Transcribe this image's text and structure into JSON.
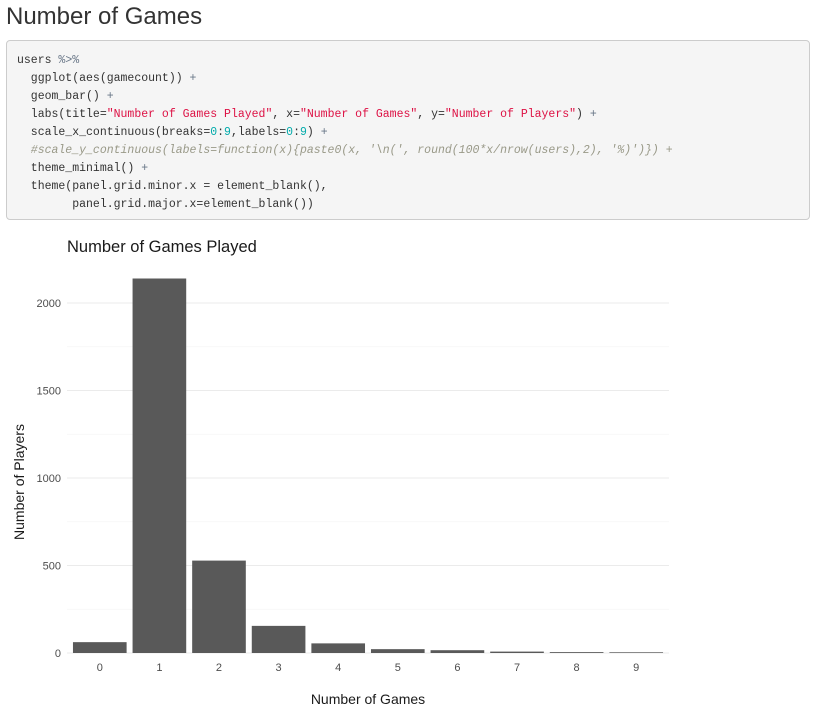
{
  "page": {
    "heading": "Number of Games"
  },
  "code": {
    "lines": [
      [
        {
          "t": "users ",
          "c": "fn"
        },
        {
          "t": "%>%",
          "c": "op"
        }
      ],
      [
        {
          "t": "  ggplot(aes(gamecount)) ",
          "c": "fn"
        },
        {
          "t": "+",
          "c": "op"
        }
      ],
      [
        {
          "t": "  geom_bar() ",
          "c": "fn"
        },
        {
          "t": "+",
          "c": "op"
        }
      ],
      [
        {
          "t": "  labs(title=",
          "c": "fn"
        },
        {
          "t": "\"Number of Games Played\"",
          "c": "str"
        },
        {
          "t": ", x=",
          "c": "fn"
        },
        {
          "t": "\"Number of Games\"",
          "c": "str"
        },
        {
          "t": ", y=",
          "c": "fn"
        },
        {
          "t": "\"Number of Players\"",
          "c": "str"
        },
        {
          "t": ") ",
          "c": "fn"
        },
        {
          "t": "+",
          "c": "op"
        }
      ],
      [
        {
          "t": "  scale_x_continuous(breaks=",
          "c": "fn"
        },
        {
          "t": "0",
          "c": "num"
        },
        {
          "t": ":",
          "c": "fn"
        },
        {
          "t": "9",
          "c": "num"
        },
        {
          "t": ",labels=",
          "c": "fn"
        },
        {
          "t": "0",
          "c": "num"
        },
        {
          "t": ":",
          "c": "fn"
        },
        {
          "t": "9",
          "c": "num"
        },
        {
          "t": ") ",
          "c": "fn"
        },
        {
          "t": "+",
          "c": "op"
        }
      ],
      [
        {
          "t": "  #scale_y_continuous(labels=function(x){paste0(x, '\\n(', round(100*x/nrow(users),2), '%)')}) +",
          "c": "com"
        }
      ],
      [
        {
          "t": "  theme_minimal() ",
          "c": "fn"
        },
        {
          "t": "+",
          "c": "op"
        }
      ],
      [
        {
          "t": "  theme(panel.grid.minor.x = element_blank(),",
          "c": "fn"
        }
      ],
      [
        {
          "t": "        panel.grid.major.x=element_blank())",
          "c": "fn"
        }
      ]
    ]
  },
  "chart_data": {
    "type": "bar",
    "title": "Number of Games Played",
    "xlabel": "Number of Games",
    "ylabel": "Number of Players",
    "categories": [
      "0",
      "1",
      "2",
      "3",
      "4",
      "5",
      "6",
      "7",
      "8",
      "9"
    ],
    "values": [
      62,
      2140,
      528,
      155,
      55,
      22,
      16,
      8,
      5,
      4
    ],
    "ylim": [
      0,
      2200
    ],
    "yticks": [
      0,
      500,
      1000,
      1500,
      2000
    ],
    "grid": "horizontal major and minor",
    "colors": {
      "bar": "#595959",
      "grid_major": "#ebebeb",
      "grid_minor": "#f5f5f5"
    }
  }
}
